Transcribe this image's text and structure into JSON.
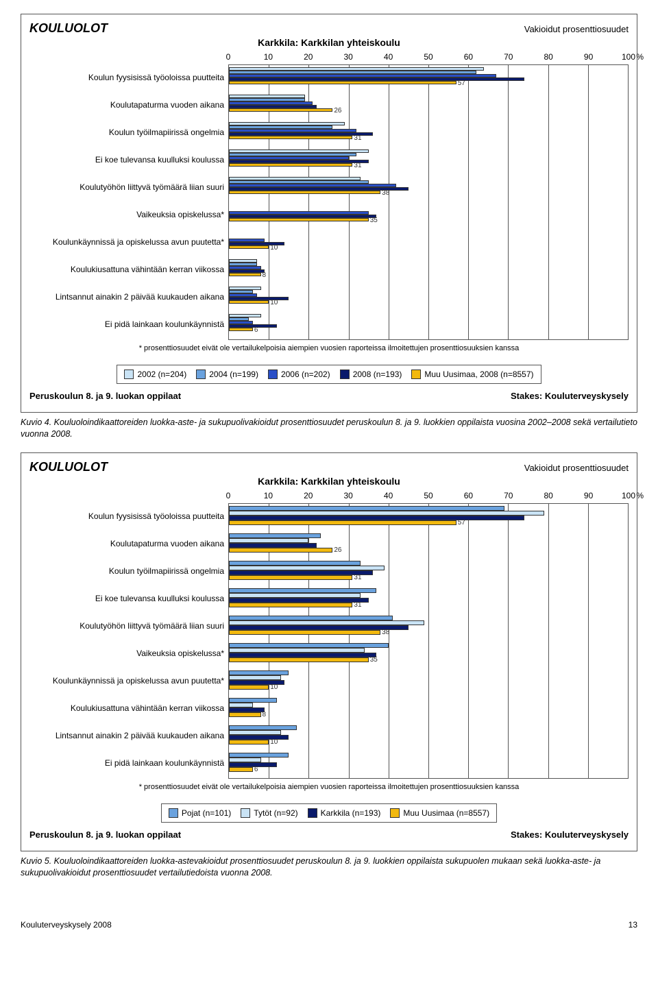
{
  "charts": [
    {
      "title": "KOULUOLOT",
      "right_note": "Vakioidut prosenttiosuudet",
      "subtitle": "Karkkila: Karkkilan yhteiskoulu",
      "x_ticks": [
        0,
        10,
        20,
        30,
        40,
        50,
        60,
        70,
        80,
        90,
        100
      ],
      "pct_symbol": "%",
      "footnote": "* prosenttiosuudet eivät ole vertailukelpoisia aiempien vuosien raporteissa ilmoitettujen prosenttiosuuksien kanssa",
      "legend": [
        {
          "label": "2002 (n=204)",
          "color": "#c9e3f5"
        },
        {
          "label": "2004 (n=199)",
          "color": "#6aa2de"
        },
        {
          "label": "2006 (n=202)",
          "color": "#2a4fc7"
        },
        {
          "label": "2008 (n=193)",
          "color": "#0a1a6b"
        },
        {
          "label": "Muu Uusimaa, 2008 (n=8557)",
          "color": "#f2b90f"
        }
      ],
      "categories": [
        {
          "label": "Koulun fyysisissä työoloissa puutteita",
          "values": [
            64,
            62,
            67,
            74,
            57
          ],
          "show_last": 57
        },
        {
          "label": "Koulutapaturma vuoden aikana",
          "values": [
            19,
            19,
            21,
            22,
            26
          ],
          "show_last": 26
        },
        {
          "label": "Koulun työilmapiirissä ongelmia",
          "values": [
            29,
            26,
            32,
            36,
            31
          ],
          "show_last": 31
        },
        {
          "label": "Ei koe tulevansa kuulluksi koulussa",
          "values": [
            35,
            32,
            30,
            35,
            31
          ],
          "show_last": 31
        },
        {
          "label": "Koulutyöhön liittyvä työmäärä liian suuri",
          "values": [
            33,
            35,
            42,
            45,
            38
          ],
          "show_last": 38
        },
        {
          "label": "Vaikeuksia opiskelussa*",
          "values": [
            null,
            null,
            35,
            37,
            35
          ],
          "show_last": 35
        },
        {
          "label": "Koulunkäynnissä ja opiskelussa avun puutetta*",
          "values": [
            null,
            null,
            9,
            14,
            10
          ],
          "show_last": 10
        },
        {
          "label": "Koulukiusattuna vähintään kerran viikossa",
          "values": [
            7,
            7,
            8,
            9,
            8
          ],
          "show_last": 8
        },
        {
          "label": "Lintsannut ainakin 2 päivää kuukauden aikana",
          "values": [
            8,
            6,
            7,
            15,
            10
          ],
          "show_last": 10
        },
        {
          "label": "Ei pidä lainkaan koulunkäynnistä",
          "values": [
            8,
            5,
            6,
            12,
            6
          ],
          "show_last": 6
        }
      ],
      "below_left": "Peruskoulun 8. ja 9. luokan oppilaat",
      "below_right": "Stakes: Kouluterveyskysely",
      "caption_head": "Kuvio 4.",
      "caption_rest": "Kouluoloindikaattoreiden luokka-aste- ja sukupuolivakioidut prosenttiosuudet peruskoulun 8. ja 9. luokkien oppilaista vuosina 2002–2008 sekä vertailutieto vuonna 2008."
    },
    {
      "title": "KOULUOLOT",
      "right_note": "Vakioidut prosenttiosuudet",
      "subtitle": "Karkkila: Karkkilan yhteiskoulu",
      "x_ticks": [
        0,
        10,
        20,
        30,
        40,
        50,
        60,
        70,
        80,
        90,
        100
      ],
      "pct_symbol": "%",
      "footnote": "* prosenttiosuudet eivät ole vertailukelpoisia aiempien vuosien raporteissa ilmoitettujen prosenttiosuuksien kanssa",
      "legend": [
        {
          "label": "Pojat (n=101)",
          "color": "#6aa2de"
        },
        {
          "label": "Tytöt (n=92)",
          "color": "#c9e3f5"
        },
        {
          "label": "Karkkila (n=193)",
          "color": "#0a1a6b"
        },
        {
          "label": "Muu Uusimaa (n=8557)",
          "color": "#f2b90f"
        }
      ],
      "categories": [
        {
          "label": "Koulun fyysisissä työoloissa puutteita",
          "values": [
            69,
            79,
            74,
            57
          ],
          "show_last": 57
        },
        {
          "label": "Koulutapaturma vuoden aikana",
          "values": [
            23,
            20,
            22,
            26
          ],
          "show_last": 26
        },
        {
          "label": "Koulun työilmapiirissä ongelmia",
          "values": [
            33,
            39,
            36,
            31
          ],
          "show_last": 31
        },
        {
          "label": "Ei koe tulevansa kuulluksi koulussa",
          "values": [
            37,
            33,
            35,
            31
          ],
          "show_last": 31
        },
        {
          "label": "Koulutyöhön liittyvä työmäärä liian suuri",
          "values": [
            41,
            49,
            45,
            38
          ],
          "show_last": 38
        },
        {
          "label": "Vaikeuksia opiskelussa*",
          "values": [
            40,
            34,
            37,
            35
          ],
          "show_last": 35
        },
        {
          "label": "Koulunkäynnissä ja opiskelussa avun puutetta*",
          "values": [
            15,
            13,
            14,
            10
          ],
          "show_last": 10
        },
        {
          "label": "Koulukiusattuna vähintään kerran viikossa",
          "values": [
            12,
            6,
            9,
            8
          ],
          "show_last": 8
        },
        {
          "label": "Lintsannut ainakin 2 päivää kuukauden aikana",
          "values": [
            17,
            13,
            15,
            10
          ],
          "show_last": 10
        },
        {
          "label": "Ei pidä lainkaan koulunkäynnistä",
          "values": [
            15,
            8,
            12,
            6
          ],
          "show_last": 6
        }
      ],
      "below_left": "Peruskoulun 8. ja 9. luokan oppilaat",
      "below_right": "Stakes: Kouluterveyskysely",
      "caption_head": "Kuvio 5.",
      "caption_rest": "Kouluoloindikaattoreiden luokka-astevakioidut prosenttiosuudet peruskoulun 8. ja 9. luokkien oppilaista sukupuolen mukaan sekä luokka-aste- ja sukupuolivakioidut prosenttiosuudet vertailutiedoista vuonna 2008."
    }
  ],
  "footer_left": "Kouluterveyskysely 2008",
  "footer_page": "13"
}
